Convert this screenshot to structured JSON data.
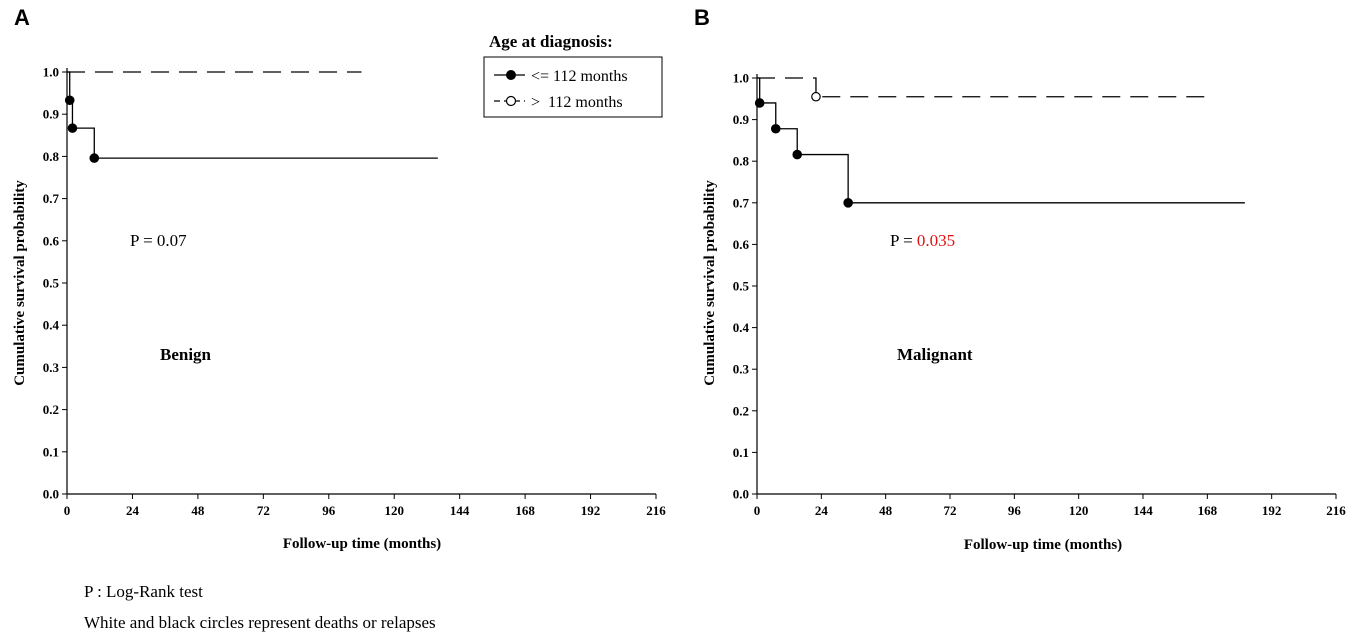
{
  "chart_data": [
    {
      "panel_label": "A",
      "type": "line",
      "subtype": "kaplan-meier",
      "xlabel": "Follow-up time (months)",
      "ylabel": "Cumulative survival probability",
      "xlim": [
        0,
        216
      ],
      "ylim": [
        0.0,
        1.0
      ],
      "xticks": [
        "0",
        "24",
        "48",
        "72",
        "96",
        "120",
        "144",
        "168",
        "192",
        "216"
      ],
      "yticks": [
        "0.0",
        "0.1",
        "0.2",
        "0.3",
        "0.4",
        "0.5",
        "0.6",
        "0.7",
        "0.8",
        "0.9",
        "1.0"
      ],
      "p_label": "P = 0.07",
      "p_prefix": "P = ",
      "p_value": "0.07",
      "p_value_color": "#000000",
      "group_label": "Benign",
      "series": [
        {
          "name": "<= 112 months",
          "style": "solid",
          "marker": "filled",
          "steps": [
            [
              0,
              1.0
            ],
            [
              1,
              0.933
            ],
            [
              2,
              0.867
            ],
            [
              10,
              0.796
            ],
            [
              136,
              0.796
            ]
          ],
          "events": [
            [
              1,
              0.933
            ],
            [
              2,
              0.867
            ],
            [
              10,
              0.796
            ]
          ]
        },
        {
          "name": "> 112 months",
          "style": "dashed",
          "marker": "open",
          "steps": [
            [
              0,
              1.0
            ],
            [
              108,
              1.0
            ]
          ],
          "events": []
        }
      ]
    },
    {
      "panel_label": "B",
      "type": "line",
      "subtype": "kaplan-meier",
      "xlabel": "Follow-up time (months)",
      "ylabel": "Cumulative survival probability",
      "xlim": [
        0,
        216
      ],
      "ylim": [
        0.0,
        1.0
      ],
      "xticks": [
        "0",
        "24",
        "48",
        "72",
        "96",
        "120",
        "144",
        "168",
        "192",
        "216"
      ],
      "yticks": [
        "0.0",
        "0.1",
        "0.2",
        "0.3",
        "0.4",
        "0.5",
        "0.6",
        "0.7",
        "0.8",
        "0.9",
        "1.0"
      ],
      "p_prefix": "P = ",
      "p_value": "0.035",
      "p_value_color": "#e01010",
      "group_label": "Malignant",
      "series": [
        {
          "name": "<= 112 months",
          "style": "solid",
          "marker": "filled",
          "steps": [
            [
              0,
              1.0
            ],
            [
              1,
              0.94
            ],
            [
              7,
              0.878
            ],
            [
              15,
              0.816
            ],
            [
              34,
              0.7
            ],
            [
              182,
              0.7
            ]
          ],
          "events": [
            [
              1,
              0.94
            ],
            [
              7,
              0.878
            ],
            [
              15,
              0.816
            ],
            [
              34,
              0.7
            ]
          ]
        },
        {
          "name": "> 112 months",
          "style": "dashed",
          "marker": "open",
          "steps": [
            [
              0,
              1.0
            ],
            [
              22,
              1.0
            ],
            [
              22,
              0.955
            ],
            [
              168,
              0.955
            ]
          ],
          "events": [
            [
              22,
              0.955
            ]
          ]
        }
      ]
    }
  ],
  "legend": {
    "title": "Age at diagnosis:",
    "items": [
      {
        "label": "<= 112 months",
        "style": "solid",
        "marker": "filled"
      },
      {
        "label": ">  112 months",
        "style": "dashed",
        "marker": "open"
      }
    ]
  },
  "footnotes": [
    "P : Log-Rank test",
    "White and black circles represent deaths or relapses"
  ]
}
